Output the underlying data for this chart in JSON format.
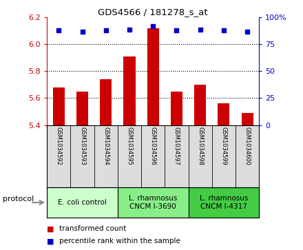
{
  "title": "GDS4566 / 181278_s_at",
  "samples": [
    "GSM1034592",
    "GSM1034593",
    "GSM1034594",
    "GSM1034595",
    "GSM1034596",
    "GSM1034597",
    "GSM1034598",
    "GSM1034599",
    "GSM1034600"
  ],
  "bar_values": [
    5.68,
    5.65,
    5.74,
    5.91,
    6.12,
    5.65,
    5.7,
    5.56,
    5.49
  ],
  "dot_values": [
    88,
    87,
    88,
    89,
    92,
    88,
    89,
    88,
    87
  ],
  "ylim": [
    5.4,
    6.2
  ],
  "y2lim": [
    0,
    100
  ],
  "yticks": [
    5.4,
    5.6,
    5.8,
    6.0,
    6.2
  ],
  "y2ticks": [
    0,
    25,
    50,
    75,
    100
  ],
  "y2ticklabels": [
    "0",
    "25",
    "50",
    "75",
    "100%"
  ],
  "bar_color": "#cc0000",
  "dot_color": "#0000cc",
  "protocol_groups": [
    {
      "label": "E. coli control",
      "start": 0,
      "end": 3,
      "color": "#ccffcc"
    },
    {
      "label": "L. rhamnosus\nCNCM I-3690",
      "start": 3,
      "end": 6,
      "color": "#88ee88"
    },
    {
      "label": "L. rhamnosus\nCNCM I-4317",
      "start": 6,
      "end": 9,
      "color": "#44cc44"
    }
  ],
  "legend_bar_label": "transformed count",
  "legend_dot_label": "percentile rank within the sample",
  "xlabel_protocol": "protocol",
  "tick_label_color": "#cc0000",
  "right_tick_color": "#0000cc",
  "bar_bottom": 5.4,
  "sample_box_color": "#dddddd",
  "bar_width": 0.5
}
